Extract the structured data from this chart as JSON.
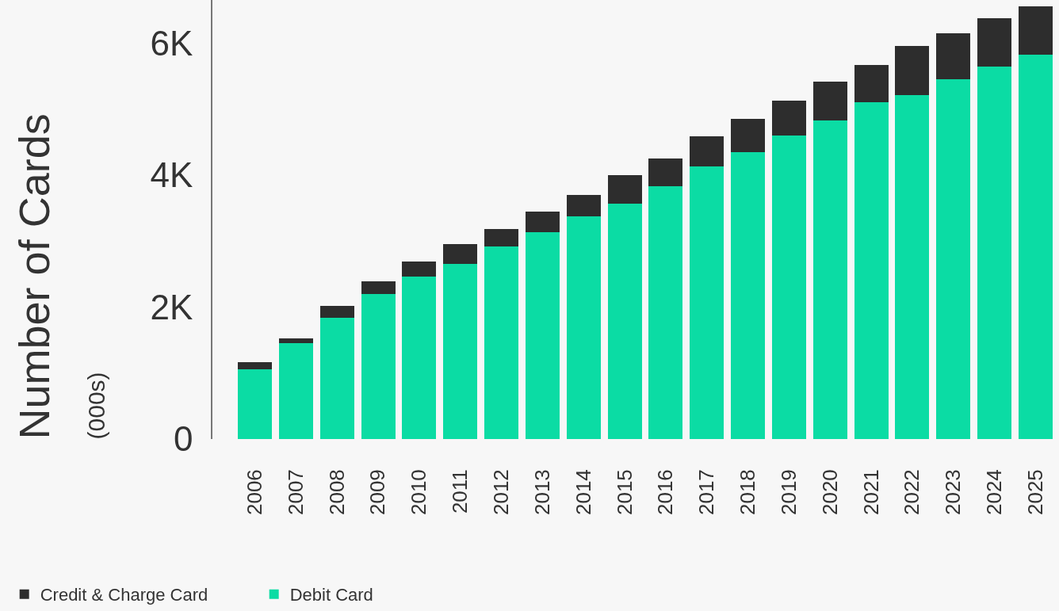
{
  "chart_data": {
    "type": "bar",
    "stacked": true,
    "ylabel": "Number of Cards\n(000s)",
    "categories": [
      "2006",
      "2007",
      "2008",
      "2009",
      "2010",
      "2011",
      "2012",
      "2013",
      "2014",
      "2015",
      "2016",
      "2017",
      "2018",
      "2019",
      "2020",
      "2021",
      "2022",
      "2023",
      "2024",
      "2025"
    ],
    "series": [
      {
        "name": "Debit Card",
        "color": "#0bdca4",
        "values": [
          1060,
          1450,
          1840,
          2200,
          2460,
          2650,
          2920,
          3130,
          3370,
          3560,
          3830,
          4130,
          4350,
          4600,
          4830,
          5100,
          5210,
          5450,
          5640,
          5820
        ]
      },
      {
        "name": "Credit & Charge Card",
        "color": "#2d2d2d",
        "values": [
          110,
          70,
          180,
          190,
          230,
          300,
          260,
          310,
          330,
          440,
          420,
          460,
          500,
          520,
          580,
          570,
          740,
          700,
          730,
          740
        ]
      }
    ],
    "ylim": [
      0,
      6650
    ],
    "yticks": [
      0,
      {
        "value": 2000,
        "label": "2K"
      },
      {
        "value": 4000,
        "label": "4K"
      },
      {
        "value": 6000,
        "label": "6K"
      }
    ],
    "legend": "bottom left"
  }
}
